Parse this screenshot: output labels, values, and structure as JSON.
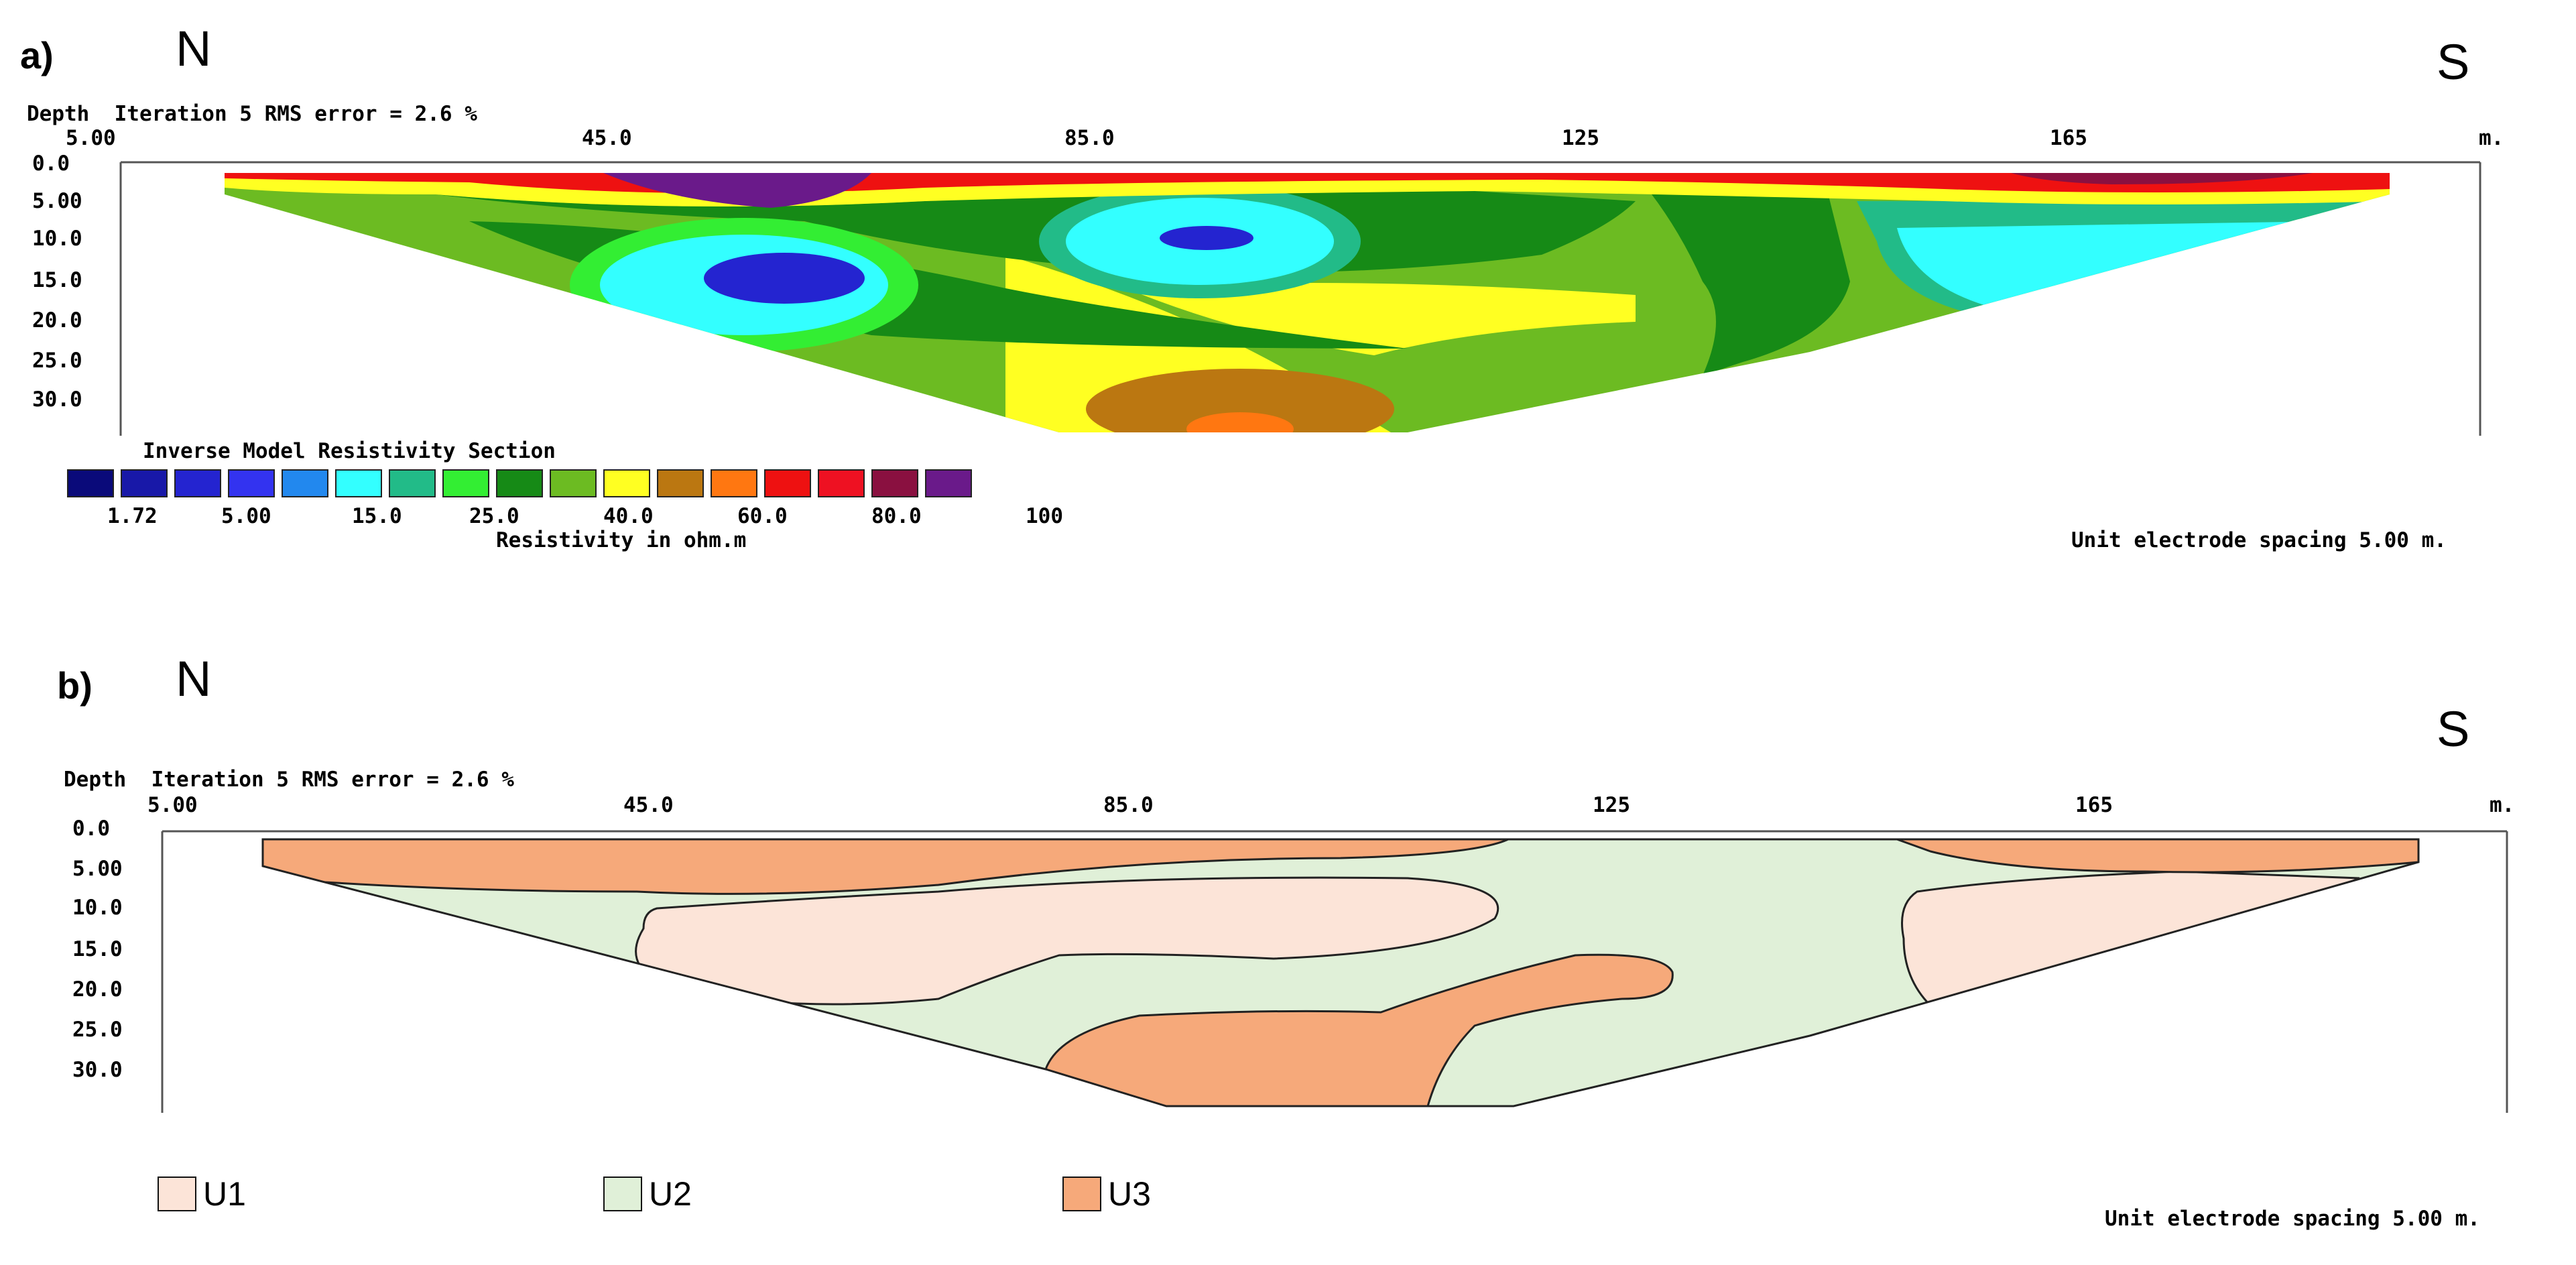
{
  "panel_a": {
    "label": "a)",
    "north": "N",
    "south": "S",
    "header": "Depth  Iteration 5 RMS error = 2.6 %",
    "unit_x": "m.",
    "x_ticks": [
      "5.00",
      "45.0",
      "85.0",
      "125",
      "165"
    ],
    "depth_ticks": [
      "0.0",
      "5.00",
      "10.0",
      "15.0",
      "20.0",
      "25.0",
      "30.0"
    ],
    "legend_title": "Inverse Model Resistivity Section",
    "legend_values": [
      "1.72",
      "5.00",
      "15.0",
      "25.0",
      "40.0",
      "60.0",
      "80.0",
      "100"
    ],
    "legend_axis": "Resistivity in ohm.m",
    "spacing": "Unit electrode spacing 5.00 m.",
    "legend_colors": [
      "#0a0a7a",
      "#1818a8",
      "#2424d0",
      "#3333f0",
      "#2288ee",
      "#33ffff",
      "#22bb88",
      "#33ee33",
      "#168a16",
      "#6cbb22",
      "#ffff22",
      "#bb7711",
      "#ff7711",
      "#ee1111",
      "#ee1122",
      "#8a1040",
      "#6a1a8a"
    ]
  },
  "panel_b": {
    "label": "b)",
    "north": "N",
    "south": "S",
    "header": "Depth  Iteration 5 RMS error = 2.6 %",
    "unit_x": "m.",
    "x_ticks": [
      "5.00",
      "45.0",
      "85.0",
      "125",
      "165"
    ],
    "depth_ticks": [
      "0.0",
      "5.00",
      "10.0",
      "15.0",
      "20.0",
      "25.0",
      "30.0"
    ],
    "spacing": "Unit electrode spacing 5.00 m.",
    "units": [
      {
        "name": "U1",
        "color": "#fce4d8"
      },
      {
        "name": "U2",
        "color": "#e0f0d8"
      },
      {
        "name": "U3",
        "color": "#f6a97a"
      }
    ]
  },
  "chart_data": [
    {
      "type": "heatmap",
      "title": "Inverse Model Resistivity Section",
      "xlabel": "m.",
      "ylabel": "Depth",
      "x_ticks": [
        5,
        45,
        85,
        125,
        165
      ],
      "y_ticks": [
        0,
        5,
        10,
        15,
        20,
        25,
        30
      ],
      "colorbar_label": "Resistivity in ohm.m",
      "colorbar_ticks": [
        1.72,
        5.0,
        15.0,
        25.0,
        40.0,
        60.0,
        80.0,
        100
      ],
      "annotation": "Iteration 5 RMS error = 2.6 %"
    },
    {
      "type": "heatmap",
      "xlabel": "m.",
      "ylabel": "Depth",
      "x_ticks": [
        5,
        45,
        85,
        125,
        165
      ],
      "y_ticks": [
        0,
        5,
        10,
        15,
        20,
        25,
        30
      ],
      "categories": [
        "U1",
        "U2",
        "U3"
      ],
      "annotation": "Iteration 5 RMS error = 2.6 %"
    }
  ]
}
